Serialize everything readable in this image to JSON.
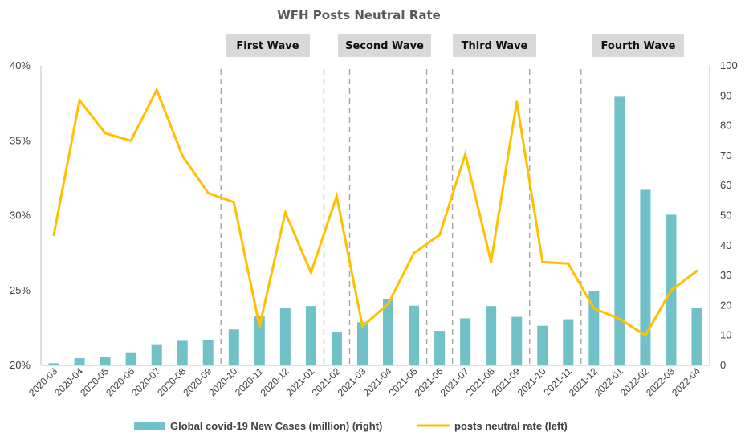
{
  "chart_data": {
    "type": "bar+line",
    "title": "WFH Posts Neutral Rate",
    "categories": [
      "2020-03",
      "2020-04",
      "2020-05",
      "2020-06",
      "2020-07",
      "2020-08",
      "2020-09",
      "2020-10",
      "2020-11",
      "2020-12",
      "2021-01",
      "2021-02",
      "2021-03",
      "2021-04",
      "2021-05",
      "2021-06",
      "2021-07",
      "2021-08",
      "2021-09",
      "2021-10",
      "2021-11",
      "2021-12",
      "2022-01",
      "2022-02",
      "2022-03",
      "2022-04"
    ],
    "left_axis": {
      "ticks": [
        "20%",
        "25%",
        "30%",
        "35%",
        "40%"
      ],
      "ylim": [
        20,
        40
      ]
    },
    "right_axis": {
      "ticks": [
        "0",
        "10",
        "20",
        "30",
        "40",
        "50",
        "60",
        "70",
        "80",
        "90",
        "100"
      ],
      "ylim": [
        0,
        100
      ]
    },
    "series": [
      {
        "name": "Global covid-19 New Cases (million) (right)",
        "type": "bar",
        "axis": "right",
        "color": "#70C1C8",
        "values": [
          0.7,
          2.4,
          2.9,
          4.1,
          6.8,
          8.2,
          8.6,
          12.0,
          16.5,
          19.3,
          19.8,
          11.0,
          14.4,
          22.0,
          19.9,
          11.5,
          15.7,
          19.8,
          16.2,
          13.2,
          15.4,
          24.8,
          89.7,
          58.6,
          50.3,
          19.3
        ]
      },
      {
        "name": "posts neutral rate (left)",
        "type": "line",
        "axis": "left",
        "color": "#FFC000",
        "values": [
          28.7,
          37.7,
          35.5,
          35.0,
          38.4,
          34.0,
          31.5,
          30.9,
          22.6,
          30.2,
          26.2,
          31.3,
          22.6,
          24.1,
          27.5,
          28.7,
          34.1,
          26.9,
          37.6,
          26.9,
          26.8,
          23.8,
          23.1,
          22.0,
          25.0,
          26.3
        ]
      }
    ],
    "annotations": [
      {
        "label": "First Wave",
        "between": [
          "2020-10",
          "2021-02"
        ]
      },
      {
        "label": "Second Wave",
        "between": [
          "2021-03",
          "2021-06"
        ]
      },
      {
        "label": "Third Wave",
        "between": [
          "2021-07",
          "2021-10"
        ]
      },
      {
        "label": "Fourth Wave",
        "between": [
          "2021-12",
          "2022-04"
        ]
      }
    ],
    "wave_dividers_after": [
      "2020-09",
      "2021-01",
      "2021-02",
      "2021-05",
      "2021-06",
      "2021-09",
      "2021-11"
    ],
    "legend_position": "bottom",
    "grid": false
  }
}
